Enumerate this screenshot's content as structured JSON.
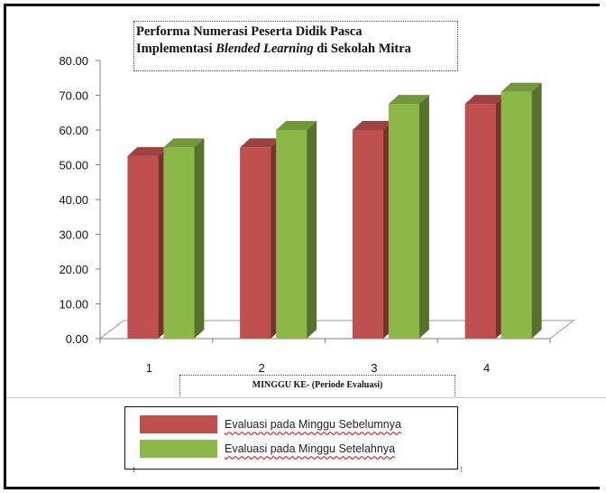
{
  "chart_data": {
    "type": "bar",
    "title_line1": "Performa Numerasi Peserta Didik Pasca",
    "title_line2_pre": "Implementasi ",
    "title_line2_em": "Blended Learning",
    "title_line2_post": " di Sekolah Mitra",
    "xlabel": "MINGGU KE- (Periode Evaluasi)",
    "ylabel": "",
    "categories": [
      "1",
      "2",
      "3",
      "4"
    ],
    "yticks": [
      "0.00",
      "10.00",
      "20.00",
      "30.00",
      "40.00",
      "50.00",
      "60.00",
      "70.00",
      "80.00"
    ],
    "ylim": [
      0,
      80
    ],
    "series": [
      {
        "name": "Evaluasi pada Minggu Sebelumnya",
        "values": [
          52.5,
          55.0,
          60.0,
          67.5
        ],
        "color": "#c0504d"
      },
      {
        "name": "Evaluasi pada Minggu Setelahnya",
        "values": [
          55.0,
          60.0,
          67.5,
          71.0
        ],
        "color": "#8cb848"
      }
    ],
    "legend_position": "bottom",
    "style": "3d-clustered-column",
    "grid": false
  }
}
